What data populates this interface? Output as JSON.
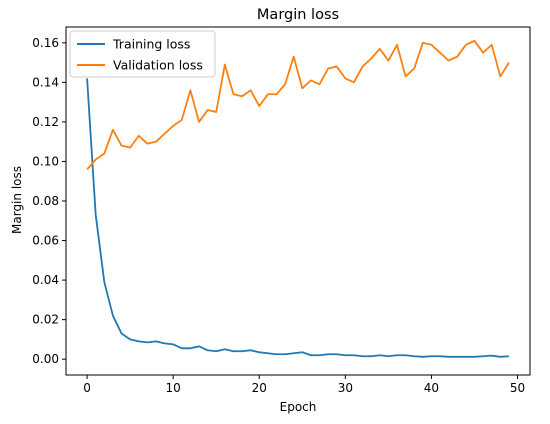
{
  "chart_data": {
    "type": "line",
    "title": "Margin loss",
    "xlabel": "Epoch",
    "ylabel": "Margin loss",
    "xlim": [
      -2.45,
      51.45
    ],
    "ylim": [
      -0.008,
      0.168
    ],
    "xticks": [
      0,
      10,
      20,
      30,
      40,
      50
    ],
    "yticks": [
      0.0,
      0.02,
      0.04,
      0.06,
      0.08,
      0.1,
      0.12,
      0.14,
      0.16
    ],
    "ytick_labels": [
      "0.00",
      "0.02",
      "0.04",
      "0.06",
      "0.08",
      "0.10",
      "0.12",
      "0.14",
      "0.16"
    ],
    "xtick_labels": [
      "0",
      "10",
      "20",
      "30",
      "40",
      "50"
    ],
    "grid": false,
    "legend_position": "top-left",
    "series": [
      {
        "name": "Training loss",
        "color": "#1f77b4",
        "x": [
          0,
          1,
          2,
          3,
          4,
          5,
          6,
          7,
          8,
          9,
          10,
          11,
          12,
          13,
          14,
          15,
          16,
          17,
          18,
          19,
          20,
          21,
          22,
          23,
          24,
          25,
          26,
          27,
          28,
          29,
          30,
          31,
          32,
          33,
          34,
          35,
          36,
          37,
          38,
          39,
          40,
          41,
          42,
          43,
          44,
          45,
          46,
          47,
          48,
          49
        ],
        "values": [
          0.142,
          0.073,
          0.039,
          0.022,
          0.013,
          0.01,
          0.009,
          0.0085,
          0.009,
          0.008,
          0.0075,
          0.0055,
          0.0055,
          0.0065,
          0.0045,
          0.004,
          0.005,
          0.004,
          0.004,
          0.0045,
          0.0035,
          0.003,
          0.0025,
          0.0025,
          0.003,
          0.0035,
          0.002,
          0.002,
          0.0025,
          0.0025,
          0.002,
          0.002,
          0.0015,
          0.0015,
          0.002,
          0.0015,
          0.002,
          0.002,
          0.0015,
          0.0012,
          0.0015,
          0.0015,
          0.0012,
          0.0012,
          0.0012,
          0.0012,
          0.0015,
          0.0018,
          0.0012,
          0.0015
        ]
      },
      {
        "name": "Validation loss",
        "color": "#ff7f0e",
        "x": [
          0,
          1,
          2,
          3,
          4,
          5,
          6,
          7,
          8,
          9,
          10,
          11,
          12,
          13,
          14,
          15,
          16,
          17,
          18,
          19,
          20,
          21,
          22,
          23,
          24,
          25,
          26,
          27,
          28,
          29,
          30,
          31,
          32,
          33,
          34,
          35,
          36,
          37,
          38,
          39,
          40,
          41,
          42,
          43,
          44,
          45,
          46,
          47,
          48,
          49
        ],
        "values": [
          0.096,
          0.101,
          0.104,
          0.116,
          0.108,
          0.107,
          0.113,
          0.109,
          0.11,
          0.114,
          0.118,
          0.121,
          0.136,
          0.12,
          0.126,
          0.125,
          0.149,
          0.134,
          0.133,
          0.136,
          0.128,
          0.134,
          0.134,
          0.139,
          0.153,
          0.137,
          0.141,
          0.139,
          0.147,
          0.148,
          0.142,
          0.14,
          0.148,
          0.152,
          0.157,
          0.151,
          0.159,
          0.143,
          0.147,
          0.16,
          0.159,
          0.155,
          0.151,
          0.153,
          0.159,
          0.161,
          0.155,
          0.159,
          0.143,
          0.15
        ]
      }
    ]
  }
}
